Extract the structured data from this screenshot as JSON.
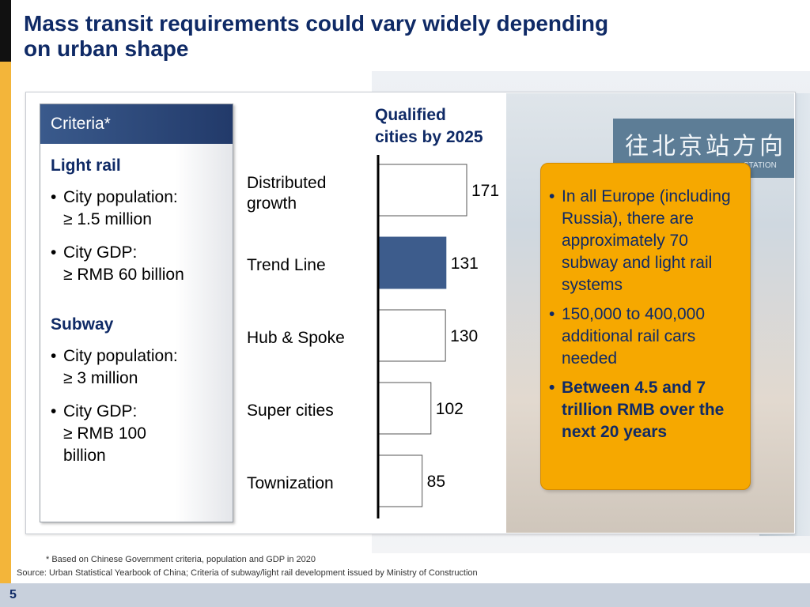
{
  "slide": {
    "title_line1": "Mass transit requirements could vary widely depending",
    "title_line2": "on urban shape",
    "page_number": "5"
  },
  "criteria": {
    "header": "Criteria*",
    "light_rail": {
      "heading": "Light rail",
      "items": [
        {
          "line1": "City population:",
          "line2": "≥ 1.5 million"
        },
        {
          "line1": "City GDP:",
          "line2": "≥ RMB 60 billion"
        }
      ]
    },
    "subway": {
      "heading": "Subway",
      "items": [
        {
          "line1": "City population:",
          "line2": "≥ 3 million"
        },
        {
          "line1": "City GDP:",
          "line2": "≥ RMB 100",
          "line3": "billion"
        }
      ]
    }
  },
  "chart_data": {
    "type": "bar",
    "orientation": "horizontal",
    "title": "Qualified cities by 2025",
    "title_line1": "Qualified",
    "title_line2": "cities by 2025",
    "categories": [
      "Distributed growth",
      "Trend Line",
      "Hub & Spoke",
      "Super cities",
      "Townization"
    ],
    "category_lines": [
      [
        "Distributed",
        "growth"
      ],
      [
        "Trend Line"
      ],
      [
        "Hub & Spoke"
      ],
      [
        "Super cities"
      ],
      [
        "Townization"
      ]
    ],
    "values": [
      171,
      131,
      130,
      102,
      85
    ],
    "highlighted_category": "Trend Line",
    "colors": {
      "highlight": "#3d5c8c",
      "default": "#ffffff",
      "stroke": "#555555",
      "axis": "#000000"
    },
    "xlim": [
      0,
      171
    ],
    "grid": false,
    "data_labels": true
  },
  "callout": {
    "items": [
      {
        "text": "In all Europe (including Russia), there are approximately 70 subway and light rail systems",
        "bold": false
      },
      {
        "text": "150,000 to 400,000 additional rail cars needed",
        "bold": false
      },
      {
        "text": "Between 4.5 and 7 trillion RMB over the next 20 years",
        "bold": true
      }
    ]
  },
  "photo": {
    "sign_text": "往北京站方向",
    "sign_sub": "STATION"
  },
  "footnotes": {
    "note": "*  Based on Chinese Government criteria, population and GDP in 2020",
    "source": "Source:  Urban Statistical Yearbook of China; Criteria of subway/light rail development issued by Ministry of Construction"
  },
  "colors": {
    "title": "#0f2a66",
    "accent_gold": "#f3b53a",
    "callout_bg": "#f6a800",
    "header_blue": "#2b4676"
  }
}
